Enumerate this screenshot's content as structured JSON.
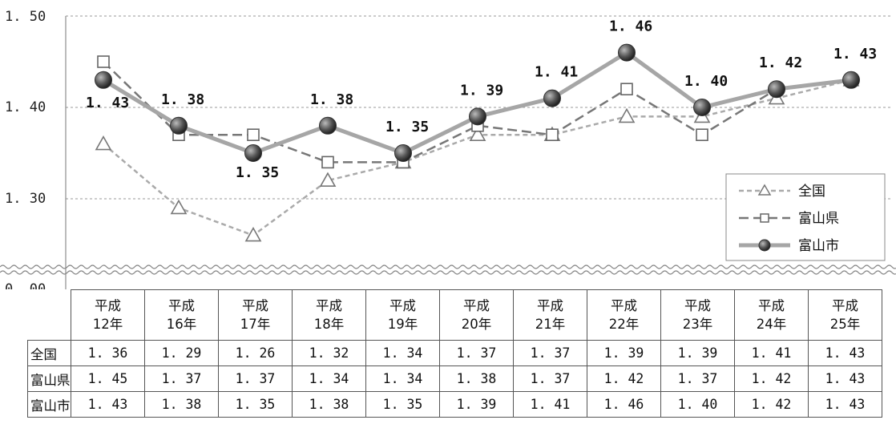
{
  "chart_data": {
    "type": "line",
    "categories": [
      "平成\n12年",
      "平成\n16年",
      "平成\n17年",
      "平成\n18年",
      "平成\n19年",
      "平成\n20年",
      "平成\n21年",
      "平成\n22年",
      "平成\n23年",
      "平成\n24年",
      "平成\n25年"
    ],
    "series": [
      {
        "name": "全国",
        "values": [
          1.36,
          1.29,
          1.26,
          1.32,
          1.34,
          1.37,
          1.37,
          1.39,
          1.39,
          1.41,
          1.43
        ],
        "display": [
          "1. 36",
          "1. 29",
          "1. 26",
          "1. 32",
          "1. 34",
          "1. 37",
          "1. 37",
          "1. 39",
          "1. 39",
          "1. 41",
          "1. 43"
        ]
      },
      {
        "name": "富山県",
        "values": [
          1.45,
          1.37,
          1.37,
          1.34,
          1.34,
          1.38,
          1.37,
          1.42,
          1.37,
          1.42,
          1.43
        ],
        "display": [
          "1. 45",
          "1. 37",
          "1. 37",
          "1. 34",
          "1. 34",
          "1. 38",
          "1. 37",
          "1. 42",
          "1. 37",
          "1. 42",
          "1. 43"
        ]
      },
      {
        "name": "富山市",
        "values": [
          1.43,
          1.38,
          1.35,
          1.38,
          1.35,
          1.39,
          1.41,
          1.46,
          1.4,
          1.42,
          1.43
        ],
        "display": [
          "1. 43",
          "1. 38",
          "1. 35",
          "1. 38",
          "1. 35",
          "1. 39",
          "1. 41",
          "1. 46",
          "1. 40",
          "1. 42",
          "1. 43"
        ],
        "labels": [
          "1. 43",
          "1. 38",
          "1. 35",
          "1. 38",
          "1. 35",
          "1. 39",
          "1. 41",
          "1. 46",
          "1. 40",
          "1. 42",
          "1. 43"
        ]
      }
    ],
    "yticks": [
      "0. 00",
      "1. 30",
      "1. 40",
      "1. 50"
    ],
    "ylim": [
      1.23,
      1.5
    ],
    "axis_break": true,
    "grid": "horizontal dashed",
    "legend_position": "bottom-right",
    "colors": {
      "全国": "#aaaaaa",
      "富山県": "#777777",
      "富山市": "#a6a6a6",
      "marker": "#444444"
    }
  }
}
